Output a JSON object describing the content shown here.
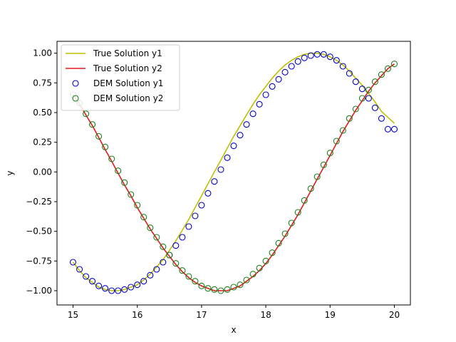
{
  "chart_data": {
    "type": "line",
    "xlabel": "x",
    "ylabel": "y",
    "xlim": [
      14.75,
      20.25
    ],
    "ylim": [
      -1.12,
      1.1
    ],
    "xticks": [
      15,
      16,
      17,
      18,
      19,
      20
    ],
    "xtick_labels": [
      "15",
      "16",
      "17",
      "18",
      "19",
      "20"
    ],
    "yticks": [
      -1.0,
      -0.75,
      -0.5,
      -0.25,
      0.0,
      0.25,
      0.5,
      0.75,
      1.0
    ],
    "ytick_labels": [
      "−1.00",
      "−0.75",
      "−0.50",
      "−0.25",
      "0.00",
      "0.25",
      "0.50",
      "0.75",
      "1.00"
    ],
    "grid": false,
    "legend_position": "upper-left",
    "series": [
      {
        "name": "True Solution y1",
        "kind": "line",
        "color": "#bfbf00",
        "x": [
          15.0,
          15.1,
          15.2,
          15.3,
          15.4,
          15.5,
          15.6,
          15.7,
          15.8,
          15.9,
          16.0,
          16.1,
          16.2,
          16.3,
          16.4,
          16.5,
          16.6,
          16.7,
          16.8,
          16.9,
          17.0,
          17.1,
          17.2,
          17.3,
          17.4,
          17.5,
          17.6,
          17.7,
          17.8,
          17.9,
          18.0,
          18.1,
          18.2,
          18.3,
          18.4,
          18.5,
          18.6,
          18.7,
          18.8,
          18.9,
          19.0,
          19.1,
          19.2,
          19.3,
          19.4,
          19.5,
          19.6,
          19.7,
          19.8,
          19.9,
          20.0
        ],
        "y": [
          -0.76,
          -0.83,
          -0.89,
          -0.93,
          -0.97,
          -0.99,
          -1.0,
          -1.0,
          -0.99,
          -0.97,
          -0.95,
          -0.91,
          -0.86,
          -0.8,
          -0.74,
          -0.66,
          -0.58,
          -0.49,
          -0.4,
          -0.3,
          -0.2,
          -0.1,
          0.0,
          0.1,
          0.2,
          0.3,
          0.39,
          0.48,
          0.57,
          0.65,
          0.72,
          0.79,
          0.85,
          0.9,
          0.94,
          0.97,
          0.99,
          1.0,
          1.0,
          0.99,
          0.97,
          0.94,
          0.9,
          0.85,
          0.79,
          0.73,
          0.66,
          0.59,
          0.51,
          0.46,
          0.41
        ]
      },
      {
        "name": "True Solution y2",
        "kind": "line",
        "color": "#e41a1c",
        "x": [
          15.0,
          15.1,
          15.2,
          15.3,
          15.4,
          15.5,
          15.6,
          15.7,
          15.8,
          15.9,
          16.0,
          16.1,
          16.2,
          16.3,
          16.4,
          16.5,
          16.6,
          16.7,
          16.8,
          16.9,
          17.0,
          17.1,
          17.2,
          17.3,
          17.4,
          17.5,
          17.6,
          17.7,
          17.8,
          17.9,
          18.0,
          18.1,
          18.2,
          18.3,
          18.4,
          18.5,
          18.6,
          18.7,
          18.8,
          18.9,
          19.0,
          19.1,
          19.2,
          19.3,
          19.4,
          19.5,
          19.6,
          19.7,
          19.8,
          19.9,
          20.0
        ],
        "y": [
          0.65,
          0.57,
          0.48,
          0.39,
          0.29,
          0.19,
          0.09,
          -0.01,
          -0.11,
          -0.2,
          -0.3,
          -0.39,
          -0.48,
          -0.56,
          -0.64,
          -0.71,
          -0.78,
          -0.84,
          -0.89,
          -0.93,
          -0.96,
          -0.98,
          -1.0,
          -1.0,
          -1.0,
          -0.98,
          -0.96,
          -0.92,
          -0.88,
          -0.83,
          -0.77,
          -0.7,
          -0.62,
          -0.54,
          -0.45,
          -0.36,
          -0.26,
          -0.16,
          -0.06,
          0.04,
          0.14,
          0.24,
          0.34,
          0.43,
          0.52,
          0.6,
          0.68,
          0.75,
          0.81,
          0.87,
          0.91
        ]
      },
      {
        "name": "DEM Solution y1",
        "kind": "scatter",
        "color": "#0000cc",
        "x": [
          15.0,
          15.1,
          15.2,
          15.3,
          15.4,
          15.5,
          15.6,
          15.7,
          15.8,
          15.9,
          16.0,
          16.1,
          16.2,
          16.3,
          16.4,
          16.5,
          16.6,
          16.7,
          16.8,
          16.9,
          17.0,
          17.1,
          17.2,
          17.3,
          17.4,
          17.5,
          17.6,
          17.7,
          17.8,
          17.9,
          18.0,
          18.1,
          18.2,
          18.3,
          18.4,
          18.5,
          18.6,
          18.7,
          18.8,
          18.9,
          19.0,
          19.1,
          19.2,
          19.3,
          19.4,
          19.5,
          19.6,
          19.7,
          19.8,
          19.9,
          20.0
        ],
        "y": [
          -0.76,
          -0.82,
          -0.88,
          -0.92,
          -0.96,
          -0.98,
          -1.0,
          -1.0,
          -0.99,
          -0.97,
          -0.95,
          -0.92,
          -0.87,
          -0.82,
          -0.76,
          -0.7,
          -0.62,
          -0.55,
          -0.46,
          -0.37,
          -0.28,
          -0.18,
          -0.08,
          0.02,
          0.12,
          0.22,
          0.31,
          0.4,
          0.49,
          0.57,
          0.65,
          0.72,
          0.78,
          0.84,
          0.89,
          0.93,
          0.96,
          0.98,
          0.99,
          0.99,
          0.97,
          0.94,
          0.89,
          0.83,
          0.76,
          0.7,
          0.62,
          0.54,
          0.45,
          0.36,
          0.36
        ]
      },
      {
        "name": "DEM Solution y2",
        "kind": "scatter",
        "color": "#1a7f1a",
        "x": [
          15.0,
          15.1,
          15.2,
          15.3,
          15.4,
          15.5,
          15.6,
          15.7,
          15.8,
          15.9,
          16.0,
          16.1,
          16.2,
          16.3,
          16.4,
          16.5,
          16.6,
          16.7,
          16.8,
          16.9,
          17.0,
          17.1,
          17.2,
          17.3,
          17.4,
          17.5,
          17.6,
          17.7,
          17.8,
          17.9,
          18.0,
          18.1,
          18.2,
          18.3,
          18.4,
          18.5,
          18.6,
          18.7,
          18.8,
          18.9,
          19.0,
          19.1,
          19.2,
          19.3,
          19.4,
          19.5,
          19.6,
          19.7,
          19.8,
          19.9,
          20.0
        ],
        "y": [
          0.65,
          0.58,
          0.49,
          0.4,
          0.3,
          0.21,
          0.11,
          0.01,
          -0.09,
          -0.19,
          -0.28,
          -0.38,
          -0.47,
          -0.55,
          -0.63,
          -0.7,
          -0.77,
          -0.83,
          -0.88,
          -0.92,
          -0.96,
          -0.98,
          -0.99,
          -1.0,
          -0.99,
          -0.97,
          -0.95,
          -0.91,
          -0.86,
          -0.81,
          -0.75,
          -0.68,
          -0.6,
          -0.52,
          -0.43,
          -0.34,
          -0.24,
          -0.14,
          -0.04,
          0.06,
          0.16,
          0.26,
          0.35,
          0.45,
          0.53,
          0.62,
          0.69,
          0.76,
          0.82,
          0.87,
          0.91
        ]
      }
    ]
  }
}
